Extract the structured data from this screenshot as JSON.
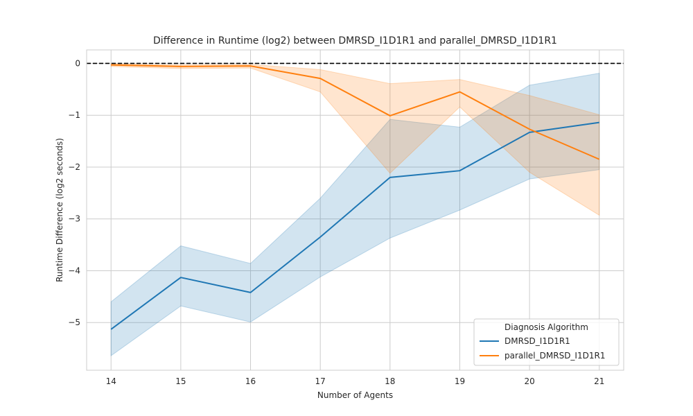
{
  "chart_data": {
    "type": "line",
    "title": "Difference in Runtime (log2) between DMRSD_I1D1R1 and parallel_DMRSD_I1D1R1",
    "xlabel": "Number of Agents",
    "ylabel": "Runtime Difference (log2 seconds)",
    "x": [
      14,
      15,
      16,
      17,
      18,
      19,
      20,
      21
    ],
    "xlim": [
      13.65,
      21.35
    ],
    "ylim": [
      -5.92,
      0.26
    ],
    "yticks": [
      0,
      -1,
      -2,
      -3,
      -4,
      -5
    ],
    "grid": true,
    "reference_line": {
      "y": 0,
      "style": "dashed",
      "color": "#000000"
    },
    "legend": {
      "title": "Diagnosis Algorithm",
      "placement": "lower-right"
    },
    "series": [
      {
        "name": "DMRSD_I1D1R1",
        "color": "#1f77b4",
        "values": [
          -5.13,
          -4.13,
          -4.42,
          -3.35,
          -2.2,
          -2.07,
          -1.33,
          -1.14
        ],
        "ci_lower": [
          -5.64,
          -4.68,
          -4.99,
          -4.12,
          -3.37,
          -2.83,
          -2.23,
          -2.05
        ],
        "ci_upper": [
          -4.6,
          -3.52,
          -3.86,
          -2.6,
          -1.08,
          -1.23,
          -0.42,
          -0.19
        ]
      },
      {
        "name": "parallel_DMRSD_I1D1R1",
        "color": "#ff7f0e",
        "values": [
          -0.03,
          -0.06,
          -0.05,
          -0.29,
          -1.01,
          -0.55,
          -1.27,
          -1.85
        ],
        "ci_lower": [
          -0.06,
          -0.1,
          -0.09,
          -0.55,
          -2.12,
          -0.84,
          -2.1,
          -2.93
        ],
        "ci_upper": [
          -0.01,
          -0.03,
          -0.02,
          -0.12,
          -0.39,
          -0.31,
          -0.62,
          -0.99
        ]
      }
    ]
  }
}
